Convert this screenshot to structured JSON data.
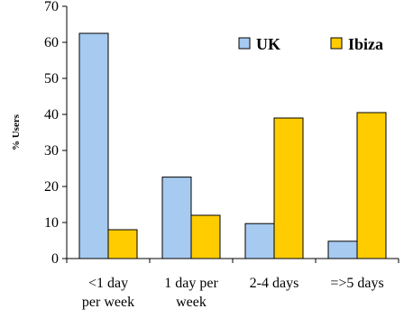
{
  "chart_data": {
    "type": "bar",
    "ylabel": "% Users",
    "ylim": [
      0,
      70
    ],
    "yticks": [
      0,
      10,
      20,
      30,
      40,
      50,
      60,
      70
    ],
    "categories": [
      [
        "<1 day",
        "per week"
      ],
      [
        "1 day per",
        "week"
      ],
      [
        "2-4 days"
      ],
      [
        "=>5 days"
      ]
    ],
    "series": [
      {
        "name": "UK",
        "values": [
          62.5,
          22.6,
          9.7,
          4.8
        ],
        "color": "#a6caf0"
      },
      {
        "name": "Ibiza",
        "values": [
          8.0,
          12.0,
          39.0,
          40.5
        ],
        "color": "#ffcc00"
      }
    ],
    "grid": false,
    "legend": "top-right"
  }
}
